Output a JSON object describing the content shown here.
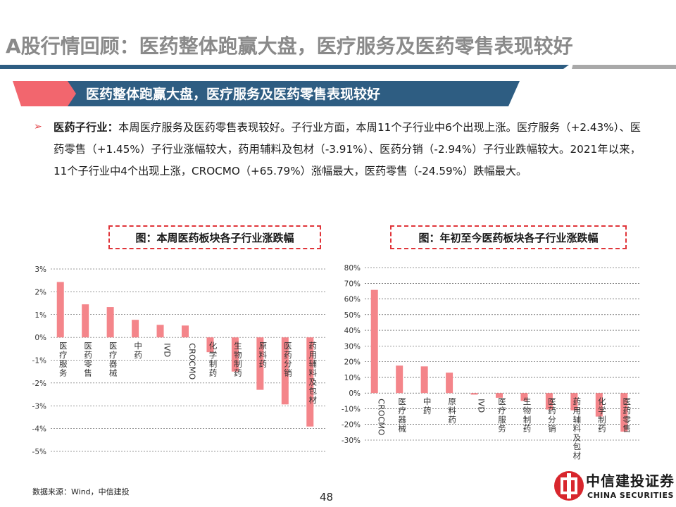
{
  "page": {
    "title": "A股行情回顾：医药整体跑赢大盘，医疗服务及医药零售表现较好",
    "banner": "医药整体跑赢大盘，医疗服务及医药零售表现较好",
    "paragraph_lead": "医药子行业：",
    "paragraph_body": "本周医疗服务及医药零售表现较好。子行业方面，本周11个子行业中6个出现上涨。医疗服务（+2.43%）、医药零售（+1.45%）子行业涨幅较大，药用辅料及包材（-3.91%）、医药分销（-2.94%）子行业跌幅较大。2021年以来，11个子行业中4个出现上涨，CROCMO（+65.79%）涨幅最大，医药零售（-24.59%）跌幅最大。",
    "source": "数据来源：Wind，中信建投",
    "page_number": "48",
    "logo_cn": "中信建投证券",
    "logo_en": "CHINA SECURITIES"
  },
  "colors": {
    "bar": "#f4858a",
    "accent_red": "#e0353a",
    "banner_blue": "#2e5d82",
    "banner_red": "#f2666e",
    "grid": "#333333"
  },
  "chart_data": [
    {
      "type": "bar",
      "title": "图：本周医药板块各子行业涨跌幅",
      "categories": [
        "医疗服务",
        "医药零售",
        "医疗器械",
        "中药",
        "IVD",
        "CROCMO",
        "化学制药",
        "生物制药",
        "原料药",
        "医药分销",
        "药用辅料及包材"
      ],
      "values": [
        2.43,
        1.45,
        1.33,
        0.77,
        0.55,
        0.52,
        -0.65,
        -1.5,
        -2.3,
        -2.94,
        -3.91
      ],
      "ylim": [
        -5,
        3
      ],
      "yticks": [
        "3%",
        "2%",
        "1%",
        "0%",
        "-1%",
        "-2%",
        "-3%",
        "-4%",
        "-5%"
      ],
      "grid": true
    },
    {
      "type": "bar",
      "title": "图：年初至今医药板块各子行业涨跌幅",
      "categories": [
        "CROCMO",
        "医疗器械",
        "中药",
        "原料药",
        "IVD",
        "医疗服务",
        "生物制药",
        "医药分销",
        "药用辅料及包材",
        "化学制药",
        "医药零售"
      ],
      "values": [
        65.79,
        17.5,
        17.0,
        13.0,
        -1.0,
        -3.0,
        -5.0,
        -10.5,
        -11.0,
        -15.0,
        -24.59
      ],
      "ylim": [
        -30,
        80
      ],
      "yticks": [
        "80%",
        "70%",
        "60%",
        "50%",
        "40%",
        "30%",
        "20%",
        "10%",
        "0%",
        "-10%",
        "-20%",
        "-30%"
      ],
      "grid": true
    }
  ]
}
